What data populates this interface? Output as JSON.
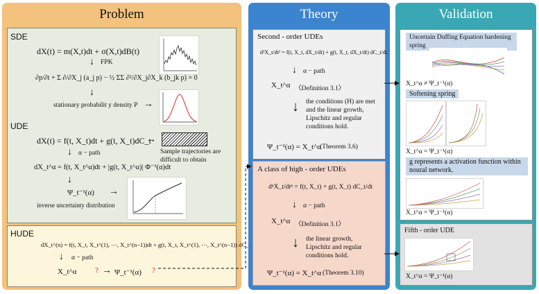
{
  "problem": {
    "title": "Problem",
    "sde": {
      "label": "SDE",
      "eq1": "dX(t) = m(X,t)dt + σ(X,t)dB(t)",
      "fpk": "FPK",
      "eq2": "∂p/∂t + Σ ∂/∂X_j (a_j p) − ½ ΣΣ ∂²/∂X_j∂X_k (b_jk p) = 0",
      "density": "stationary probabilit y density P"
    },
    "ude": {
      "label": "UDE",
      "eq1": "dX(t) = f(t, X_t)dt + g(t, X_t)dC_t",
      "alpha_path": "α − path",
      "eq2": "dX_t^α = f(t, X_t^α)dt + |g(t, X_t^α)| Φ⁻¹(α)dt",
      "sample_note": "Sample trajectories are difficult to obtain",
      "psi": "Ψ_t⁻¹(α)",
      "inverse": "inverse uncertainty distribution"
    },
    "hude": {
      "label": "HUDE",
      "eq": "dX_t^(n) = f(t, X_t, X_t^(1), ⋯, X_t^(n−1))dt + g(t, X_t, X_t^(1), ⋯, X_t^(n−1)) dC_t/dt",
      "alpha_path": "α − path",
      "xalpha": "X_t^α",
      "q1": "?",
      "psi": "Ψ_t⁻¹(α)",
      "q2": "?"
    }
  },
  "theory": {
    "title": "Theory",
    "second": {
      "heading": "Second - order UDEs",
      "eq": "d²X_t/dt² = f(t, X_t, dX_t/dt) + g(t, X_t, dX_t/dt) dC_t/dt",
      "alpha_path": "α − path",
      "xalpha": "X_t^α",
      "def": "〈Definition 3.1〉",
      "conditions": "the conditions (H) are met and the linear growth, Lipschitz and regular conditions hold.",
      "result": "Ψ_t⁻¹(α) = X_t^α",
      "theorem": "(Theorem 3.6)"
    },
    "high": {
      "heading": "A class of high - order UDEs",
      "eq": "dⁿX_t/dtⁿ = f(t, X_t) + g(t, X_t) dC_t/dt",
      "alpha_path": "α − path",
      "xalpha": "X_t^α",
      "def": "〈Definition 3.1〉",
      "conditions": "the linear growth, Lipschitz and regular conditions hold.",
      "result": "Ψ_t⁻¹(α) = X_t^α",
      "theorem": "(Theorem 3.10)"
    }
  },
  "validation": {
    "title": "Validation",
    "duffing": {
      "label": "Uncertain Duffing Equation hardening spring",
      "relation": "X_t^α ≠ Ψ_t⁻¹(α)"
    },
    "softening": {
      "label": "Softening spring",
      "relation": "X_t^α = Ψ_t⁻¹(α)"
    },
    "activation": {
      "label": "g represents a activation function within noural network.",
      "relation": "X_t^α = Ψ_t⁻¹(α)"
    },
    "fifth": {
      "label": "Fifth - order UDE",
      "relation": "X_t^α = Ψ_t⁻¹(α)"
    }
  },
  "colors": {
    "problem_panel": "#f3c27c",
    "theory_panel": "#3b84cf",
    "validation_panel": "#3aa8b4",
    "sde_ude_bg": "#e6ede0",
    "hude_bg": "#fdf6dc",
    "second_bg": "#f0f0f0",
    "high_bg": "#f6d8cb",
    "fifth_bg": "#e2e2e2",
    "density_curve": "#e33b3b"
  }
}
